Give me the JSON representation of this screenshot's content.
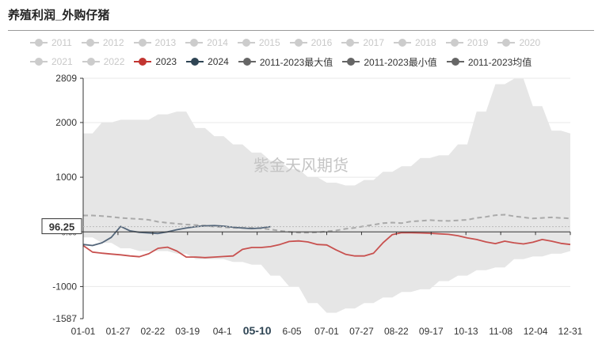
{
  "title": "养殖利润_外购仔猪",
  "legend": {
    "rows": [
      [
        {
          "label": "2011",
          "color": "#cccccc",
          "active": false
        },
        {
          "label": "2012",
          "color": "#cccccc",
          "active": false
        },
        {
          "label": "2013",
          "color": "#cccccc",
          "active": false
        },
        {
          "label": "2014",
          "color": "#cccccc",
          "active": false
        },
        {
          "label": "2015",
          "color": "#cccccc",
          "active": false
        },
        {
          "label": "2016",
          "color": "#cccccc",
          "active": false
        },
        {
          "label": "2017",
          "color": "#cccccc",
          "active": false
        },
        {
          "label": "2018",
          "color": "#cccccc",
          "active": false
        },
        {
          "label": "2019",
          "color": "#cccccc",
          "active": false
        },
        {
          "label": "2020",
          "color": "#cccccc",
          "active": false
        }
      ],
      [
        {
          "label": "2021",
          "color": "#cccccc",
          "active": false
        },
        {
          "label": "2022",
          "color": "#cccccc",
          "active": false
        },
        {
          "label": "2023",
          "color": "#c23531",
          "active": true
        },
        {
          "label": "2024",
          "color": "#2f4554",
          "active": true
        },
        {
          "label": "2011-2023最大值",
          "color": "#666666",
          "active": true
        },
        {
          "label": "2011-2023最小值",
          "color": "#666666",
          "active": true
        },
        {
          "label": "2011-2023均值",
          "color": "#666666",
          "active": true
        }
      ]
    ]
  },
  "watermark": "紫金天风期货",
  "colors": {
    "band": "#e6e6e6",
    "mean": "#aaaaaa",
    "s2023": "#c8514f",
    "s2024": "#54667a",
    "axis": "#333333",
    "grid": "#e8e8e8"
  },
  "chart_data": {
    "type": "line",
    "ylim": [
      -1587,
      2809
    ],
    "y_ticks": [
      2809,
      2000,
      1000,
      0.0,
      -1000,
      -1587
    ],
    "y_tick_labels": [
      "2809",
      "2000",
      "1000",
      "0.00",
      "-1000",
      "-1587"
    ],
    "x_tick_labels": [
      "01-01",
      "01-27",
      "02-22",
      "03-19",
      "04-1",
      "05-10",
      "6-05",
      "07-01",
      "07-27",
      "08-22",
      "09-17",
      "10-13",
      "11-08",
      "12-04",
      "12-31"
    ],
    "highlight_x_label": "05-10",
    "pointer_value": "96.25",
    "pointer_y": 96.25,
    "n_points": 53,
    "band_max": [
      1800,
      1800,
      2000,
      2000,
      2050,
      2050,
      2050,
      2050,
      2150,
      2150,
      2200,
      2200,
      1900,
      1900,
      1750,
      1750,
      1600,
      1600,
      1450,
      1450,
      1300,
      1300,
      1150,
      1150,
      1000,
      1000,
      900,
      900,
      850,
      850,
      950,
      950,
      1100,
      1100,
      1200,
      1200,
      1350,
      1350,
      1400,
      1400,
      1600,
      1600,
      2200,
      2200,
      2700,
      2700,
      2800,
      2800,
      2300,
      2300,
      1850,
      1850,
      1800
    ],
    "band_min": [
      -100,
      -100,
      -200,
      -200,
      -300,
      -300,
      -350,
      -350,
      -350,
      -350,
      -400,
      -400,
      -500,
      -500,
      -500,
      -500,
      -550,
      -550,
      -600,
      -600,
      -800,
      -800,
      -1000,
      -1000,
      -1300,
      -1300,
      -1480,
      -1480,
      -1400,
      -1400,
      -1300,
      -1300,
      -1200,
      -1200,
      -1100,
      -1100,
      -1050,
      -1050,
      -900,
      -900,
      -800,
      -800,
      -700,
      -700,
      -650,
      -650,
      -500,
      -500,
      -450,
      -450,
      -400,
      -400,
      -350
    ],
    "series": [
      {
        "name": "2011-2023均值",
        "values": [
          300,
          300,
          290,
          275,
          255,
          245,
          235,
          220,
          185,
          165,
          150,
          135,
          125,
          115,
          95,
          85,
          75,
          75,
          75,
          65,
          45,
          20,
          0,
          -15,
          -15,
          -10,
          10,
          25,
          55,
          75,
          105,
          130,
          160,
          170,
          160,
          190,
          200,
          215,
          205,
          200,
          210,
          220,
          255,
          275,
          305,
          315,
          285,
          265,
          245,
          255,
          265,
          255,
          245
        ]
      },
      {
        "name": "2023",
        "values": [
          -250,
          -370,
          -390,
          -405,
          -420,
          -440,
          -455,
          -400,
          -300,
          -280,
          -350,
          -460,
          -460,
          -470,
          -460,
          -450,
          -440,
          -320,
          -285,
          -285,
          -270,
          -230,
          -175,
          -165,
          -185,
          -230,
          -240,
          -330,
          -410,
          -440,
          -440,
          -390,
          -200,
          -50,
          -15,
          -15,
          -20,
          -25,
          -35,
          -45,
          -70,
          -110,
          -140,
          -185,
          -215,
          -170,
          -200,
          -220,
          -190,
          -140,
          -170,
          -210,
          -230
        ]
      },
      {
        "name": "2024",
        "values": [
          -230,
          -250,
          -200,
          -100,
          100,
          20,
          -10,
          -20,
          -30,
          0,
          40,
          70,
          95,
          110,
          115,
          105,
          85,
          70,
          60,
          70,
          96.25
        ]
      }
    ]
  }
}
